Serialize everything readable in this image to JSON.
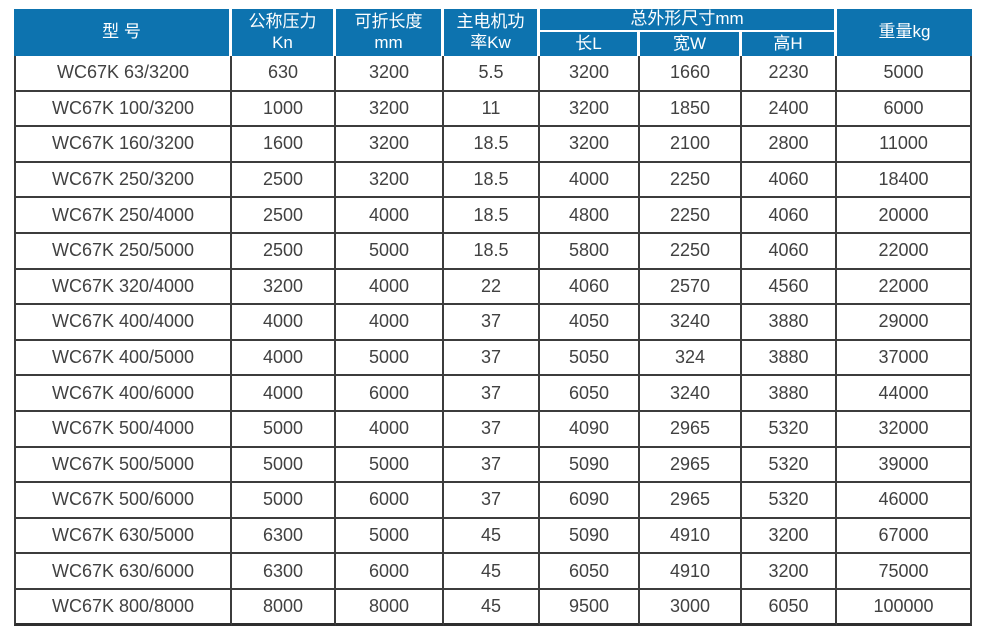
{
  "table": {
    "header": {
      "col_model": "型 号",
      "col_pressure_line1": "公称压力",
      "col_pressure_line2": "Kn",
      "col_length_line1": "可折长度",
      "col_length_line2": "mm",
      "col_power_line1": "主电机功",
      "col_power_line2": "率Kw",
      "col_dimensions_group": "总外形尺寸mm",
      "col_dim_length": "长L",
      "col_dim_width": "宽W",
      "col_dim_height": "高H",
      "col_weight": "重量kg"
    },
    "rows": [
      [
        "WC67K 63/3200",
        "630",
        "3200",
        "5.5",
        "3200",
        "1660",
        "2230",
        "5000"
      ],
      [
        "WC67K 100/3200",
        "1000",
        "3200",
        "11",
        "3200",
        "1850",
        "2400",
        "6000"
      ],
      [
        "WC67K 160/3200",
        "1600",
        "3200",
        "18.5",
        "3200",
        "2100",
        "2800",
        "11000"
      ],
      [
        "WC67K 250/3200",
        "2500",
        "3200",
        "18.5",
        "4000",
        "2250",
        "4060",
        "18400"
      ],
      [
        "WC67K 250/4000",
        "2500",
        "4000",
        "18.5",
        "4800",
        "2250",
        "4060",
        "20000"
      ],
      [
        "WC67K 250/5000",
        "2500",
        "5000",
        "18.5",
        "5800",
        "2250",
        "4060",
        "22000"
      ],
      [
        "WC67K 320/4000",
        "3200",
        "4000",
        "22",
        "4060",
        "2570",
        "4560",
        "22000"
      ],
      [
        "WC67K 400/4000",
        "4000",
        "4000",
        "37",
        "4050",
        "3240",
        "3880",
        "29000"
      ],
      [
        "WC67K 400/5000",
        "4000",
        "5000",
        "37",
        "5050",
        "324",
        "3880",
        "37000"
      ],
      [
        "WC67K 400/6000",
        "4000",
        "6000",
        "37",
        "6050",
        "3240",
        "3880",
        "44000"
      ],
      [
        "WC67K 500/4000",
        "5000",
        "4000",
        "37",
        "4090",
        "2965",
        "5320",
        "32000"
      ],
      [
        "WC67K 500/5000",
        "5000",
        "5000",
        "37",
        "5090",
        "2965",
        "5320",
        "39000"
      ],
      [
        "WC67K 500/6000",
        "5000",
        "6000",
        "37",
        "6090",
        "2965",
        "5320",
        "46000"
      ],
      [
        "WC67K 630/5000",
        "6300",
        "5000",
        "45",
        "5090",
        "4910",
        "3200",
        "67000"
      ],
      [
        "WC67K 630/6000",
        "6300",
        "6000",
        "45",
        "6050",
        "4910",
        "3200",
        "75000"
      ],
      [
        "WC67K 800/8000",
        "8000",
        "8000",
        "45",
        "9500",
        "3000",
        "6050",
        "100000"
      ]
    ]
  },
  "colors": {
    "header_bg": "#0d73af",
    "header_text": "#ffffff",
    "body_text": "#414141",
    "grid_line": "#3c3c3c",
    "outer_line": "#2e2e2e",
    "page_bg": "#ffffff"
  }
}
